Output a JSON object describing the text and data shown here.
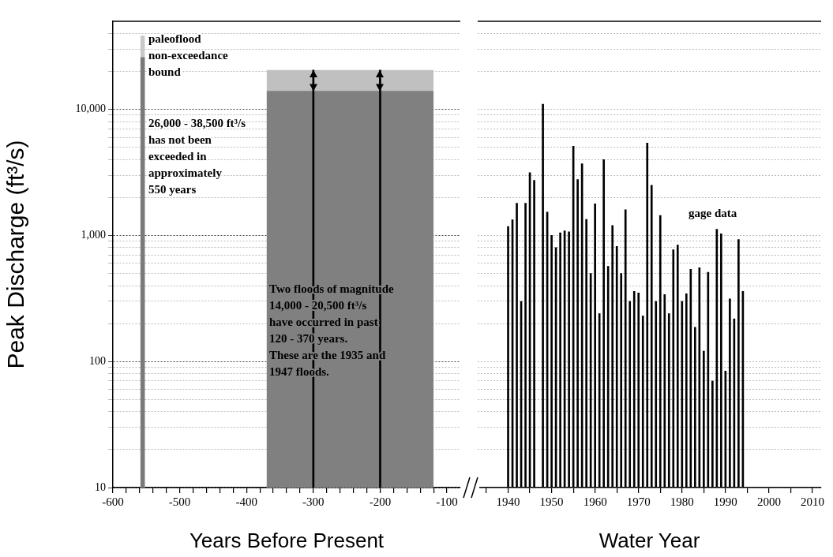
{
  "chart_data": [
    {
      "type": "bar",
      "xlabel": "Years Before Present",
      "ylabel": "Peak Discharge (ft³/s)",
      "grid": "y",
      "xlim": [
        -600,
        -80
      ],
      "xticks": [
        -600,
        {
          "value": -580,
          "label": null
        },
        {
          "value": -560,
          "label": null
        },
        {
          "value": -540,
          "label": null
        },
        {
          "value": -520,
          "label": null
        },
        -500,
        {
          "value": -480,
          "label": null
        },
        {
          "value": -460,
          "label": null
        },
        {
          "value": -440,
          "label": null
        },
        {
          "value": -420,
          "label": null
        },
        -400,
        {
          "value": -380,
          "label": null
        },
        {
          "value": -360,
          "label": null
        },
        {
          "value": -340,
          "label": null
        },
        {
          "value": -320,
          "label": null
        },
        -300,
        {
          "value": -280,
          "label": null
        },
        {
          "value": -260,
          "label": null
        },
        {
          "value": -240,
          "label": null
        },
        {
          "value": -220,
          "label": null
        },
        -200,
        {
          "value": -180,
          "label": null
        },
        {
          "value": -160,
          "label": null
        },
        {
          "value": -140,
          "label": null
        },
        {
          "value": -120,
          "label": null
        },
        -100
      ],
      "ylim": [
        10,
        50000
      ],
      "log": "y",
      "yticks": [
        10,
        {
          "value": 20,
          "label": null
        },
        {
          "value": 30,
          "label": null
        },
        {
          "value": 40,
          "label": null
        },
        {
          "value": 50,
          "label": null
        },
        {
          "value": 60,
          "label": null
        },
        {
          "value": 70,
          "label": null
        },
        {
          "value": 80,
          "label": null
        },
        {
          "value": 90,
          "label": null
        },
        100,
        {
          "value": 200,
          "label": null
        },
        {
          "value": 300,
          "label": null
        },
        {
          "value": 400,
          "label": null
        },
        {
          "value": 500,
          "label": null
        },
        {
          "value": 600,
          "label": null
        },
        {
          "value": 700,
          "label": null
        },
        {
          "value": 800,
          "label": null
        },
        {
          "value": 900,
          "label": null
        },
        {
          "value": 1000,
          "label": "1,000"
        },
        {
          "value": 2000,
          "label": null
        },
        {
          "value": 3000,
          "label": null
        },
        {
          "value": 4000,
          "label": null
        },
        {
          "value": 5000,
          "label": null
        },
        {
          "value": 6000,
          "label": null
        },
        {
          "value": 7000,
          "label": null
        },
        {
          "value": 8000,
          "label": null
        },
        {
          "value": 9000,
          "label": null
        },
        {
          "value": 10000,
          "label": "10,000"
        },
        {
          "value": 20000,
          "label": null
        },
        {
          "value": 30000,
          "label": null
        },
        {
          "value": 40000,
          "label": null
        }
      ],
      "series": [
        {
          "type": "area",
          "color": "#c8c8c8",
          "x": [
            -559,
            -552
          ],
          "values": [
            38500,
            38500
          ]
        },
        {
          "type": "area",
          "color": "#7a7a7a",
          "x": [
            -559,
            -552
          ],
          "values": [
            26000,
            26000
          ]
        },
        {
          "type": "area",
          "color": "#c0c0c0",
          "x": [
            -370,
            -120
          ],
          "values": [
            20500,
            20500
          ]
        },
        {
          "type": "area",
          "color": "#808080",
          "x": [
            -370,
            -120
          ],
          "values": [
            14000,
            14000
          ]
        },
        {
          "color": "#000000",
          "x": [
            -300,
            -200
          ],
          "values": [
            20500,
            20500
          ]
        }
      ],
      "annotations": [
        "paleoflood\nnon-exceedance\nbound",
        "26,000 - 38,500 ft³/s\nhas not been\nexceeded in\napproximately\n550 years",
        "Two floods of magnitude\n14,000 - 20,500 ft³/s\nhave occurred in past\n120 - 370 years.\nThese are the 1935 and\n1947 floods."
      ]
    },
    {
      "type": "bar",
      "xlabel": "Water Year",
      "grid": "y",
      "tick_labels": "x",
      "xlim": [
        1933,
        2012
      ],
      "xticks": [
        {
          "value": 1935,
          "label": null
        },
        1940,
        {
          "value": 1945,
          "label": null
        },
        1950,
        {
          "value": 1955,
          "label": null
        },
        1960,
        {
          "value": 1965,
          "label": null
        },
        1970,
        {
          "value": 1975,
          "label": null
        },
        1980,
        {
          "value": 1985,
          "label": null
        },
        1990,
        {
          "value": 1995,
          "label": null
        },
        2000,
        {
          "value": 2005,
          "label": null
        },
        2010
      ],
      "ylim": [
        10,
        50000
      ],
      "log": "y",
      "yticks": [
        {
          "value": 10,
          "label": null
        },
        {
          "value": 20,
          "label": null
        },
        {
          "value": 30,
          "label": null
        },
        {
          "value": 40,
          "label": null
        },
        {
          "value": 50,
          "label": null
        },
        {
          "value": 60,
          "label": null
        },
        {
          "value": 70,
          "label": null
        },
        {
          "value": 80,
          "label": null
        },
        {
          "value": 90,
          "label": null
        },
        {
          "value": 100,
          "label": null
        },
        {
          "value": 200,
          "label": null
        },
        {
          "value": 300,
          "label": null
        },
        {
          "value": 400,
          "label": null
        },
        {
          "value": 500,
          "label": null
        },
        {
          "value": 600,
          "label": null
        },
        {
          "value": 700,
          "label": null
        },
        {
          "value": 800,
          "label": null
        },
        {
          "value": 900,
          "label": null
        },
        {
          "value": 1000,
          "label": null
        },
        {
          "value": 2000,
          "label": null
        },
        {
          "value": 3000,
          "label": null
        },
        {
          "value": 4000,
          "label": null
        },
        {
          "value": 5000,
          "label": null
        },
        {
          "value": 6000,
          "label": null
        },
        {
          "value": 7000,
          "label": null
        },
        {
          "value": 8000,
          "label": null
        },
        {
          "value": 9000,
          "label": null
        },
        {
          "value": 10000,
          "label": null
        },
        {
          "value": 20000,
          "label": null
        },
        {
          "value": 30000,
          "label": null
        },
        {
          "value": 40000,
          "label": null
        }
      ],
      "series": [
        {
          "color": "#000000",
          "x": [
            1940,
            1941,
            1942,
            1943,
            1944,
            1945,
            1946,
            1948,
            1949,
            1950,
            1951,
            1952,
            1953,
            1954,
            1955,
            1956,
            1957,
            1958,
            1959,
            1960,
            1961,
            1962,
            1963,
            1964,
            1965,
            1966,
            1967,
            1968,
            1969,
            1970,
            1971,
            1972,
            1973,
            1974,
            1975,
            1976,
            1977,
            1978,
            1979,
            1980,
            1981,
            1982,
            1983,
            1984,
            1985,
            1986,
            1987,
            1988,
            1989,
            1990,
            1991,
            1992,
            1993,
            1994
          ],
          "values": [
            1180,
            1330,
            1800,
            300,
            1800,
            3150,
            2740,
            11000,
            1530,
            1000,
            800,
            1050,
            1090,
            1070,
            5100,
            2780,
            3700,
            1340,
            500,
            1780,
            240,
            4000,
            570,
            1200,
            820,
            500,
            1600,
            300,
            360,
            350,
            230,
            5400,
            2500,
            300,
            1440,
            340,
            240,
            770,
            840,
            300,
            345,
            540,
            187,
            555,
            121,
            510,
            70,
            1120,
            1030,
            84,
            314,
            218,
            930,
            360
          ]
        }
      ],
      "annotations": [
        "gage data"
      ]
    }
  ]
}
